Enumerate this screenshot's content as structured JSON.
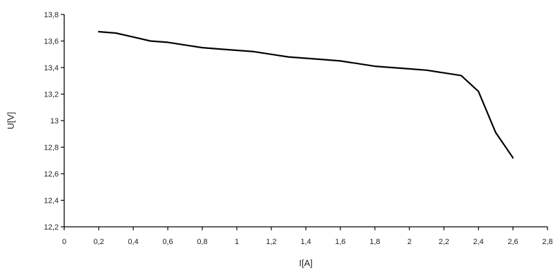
{
  "chart_data": {
    "type": "line",
    "title": "",
    "xlabel": "I[A]",
    "ylabel": "U[V]",
    "xlim": [
      0,
      2.8
    ],
    "ylim": [
      12.2,
      13.8
    ],
    "grid": false,
    "x_ticks": [
      "0",
      "0,2",
      "0,4",
      "0,6",
      "0,8",
      "1",
      "1,2",
      "1,4",
      "1,6",
      "1,8",
      "2",
      "2,2",
      "2,4",
      "2,6",
      "2,8"
    ],
    "y_ticks": [
      "12,2",
      "12,4",
      "12,6",
      "12,8",
      "13",
      "13,2",
      "13,4",
      "13,6",
      "13,8"
    ],
    "series": [
      {
        "color": "#000000",
        "x": [
          0.2,
          0.3,
          0.4,
          0.5,
          0.6,
          0.7,
          0.8,
          0.9,
          1.0,
          1.1,
          1.2,
          1.3,
          1.4,
          1.5,
          1.6,
          1.7,
          1.8,
          1.9,
          2.0,
          2.1,
          2.2,
          2.3,
          2.4,
          2.5,
          2.6
        ],
        "y": [
          13.67,
          13.66,
          13.63,
          13.6,
          13.59,
          13.57,
          13.55,
          13.54,
          13.53,
          13.52,
          13.5,
          13.48,
          13.47,
          13.46,
          13.45,
          13.43,
          13.41,
          13.4,
          13.39,
          13.38,
          13.36,
          13.34,
          13.22,
          12.91,
          12.72
        ]
      }
    ]
  }
}
